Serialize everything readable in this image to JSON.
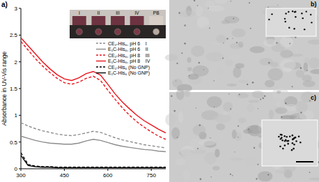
{
  "chart_data": {
    "type": "line",
    "y_label": "Absorbance in UV-Vis range",
    "x": [
      300,
      325,
      350,
      375,
      400,
      425,
      450,
      475,
      500,
      525,
      550,
      575,
      600,
      625,
      650,
      675,
      700,
      725,
      750,
      775,
      800
    ],
    "xlim": [
      300,
      800
    ],
    "xticks": [
      300,
      450,
      600,
      750
    ],
    "ylim": [
      0,
      3
    ],
    "yticks": [
      0,
      0.5,
      1,
      1.5,
      2,
      2.5,
      3
    ],
    "legend": "upper right",
    "series": [
      {
        "name": "CE₁-His₆, pH 6    I",
        "color": "#8c8c8c",
        "line_style": "dashed",
        "values": [
          0.86,
          0.8,
          0.75,
          0.71,
          0.68,
          0.65,
          0.63,
          0.62,
          0.64,
          0.67,
          0.7,
          0.68,
          0.63,
          0.58,
          0.54,
          0.51,
          0.48,
          0.45,
          0.43,
          0.41,
          0.39
        ]
      },
      {
        "name": "E₁C-His₆, pH 6    II",
        "color": "#8c8c8c",
        "line_style": "solid",
        "values": [
          0.61,
          0.57,
          0.53,
          0.5,
          0.48,
          0.47,
          0.46,
          0.46,
          0.48,
          0.52,
          0.55,
          0.53,
          0.49,
          0.45,
          0.42,
          0.4,
          0.38,
          0.36,
          0.35,
          0.33,
          0.32
        ]
      },
      {
        "name": "CE₁-His₆, pH 8    III",
        "color": "#e8141b",
        "line_style": "dashed",
        "values": [
          2.38,
          2.22,
          2.06,
          1.92,
          1.8,
          1.69,
          1.61,
          1.58,
          1.62,
          1.69,
          1.73,
          1.65,
          1.47,
          1.3,
          1.14,
          1.0,
          0.88,
          0.78,
          0.69,
          0.61,
          0.55
        ]
      },
      {
        "name": "E₁C-His₆, pH 8    IV",
        "color": "#e8141b",
        "line_style": "solid",
        "values": [
          2.45,
          2.3,
          2.15,
          2.0,
          1.87,
          1.76,
          1.68,
          1.65,
          1.7,
          1.78,
          1.82,
          1.75,
          1.58,
          1.4,
          1.25,
          1.12,
          1.0,
          0.9,
          0.82,
          0.74,
          0.67
        ]
      },
      {
        "name": "CE₁-His₆ (No GNP)",
        "color": "#000000",
        "line_style": "dashed",
        "values": [
          0.3,
          0.08,
          0.05,
          0.04,
          0.04,
          0.03,
          0.03,
          0.03,
          0.03,
          0.03,
          0.03,
          0.03,
          0.03,
          0.03,
          0.03,
          0.03,
          0.03,
          0.03,
          0.03,
          0.03,
          0.03
        ]
      },
      {
        "name": "E₁C-His₆ (No GNP)",
        "color": "#000000",
        "line_style": "solid",
        "values": [
          0.25,
          0.06,
          0.04,
          0.03,
          0.03,
          0.02,
          0.02,
          0.02,
          0.02,
          0.02,
          0.02,
          0.02,
          0.02,
          0.02,
          0.02,
          0.02,
          0.02,
          0.02,
          0.02,
          0.02,
          0.02
        ]
      }
    ]
  },
  "figure": {
    "panel_labels": [
      "a)",
      "b)",
      "c)"
    ],
    "inset_labels": [
      "I",
      "II",
      "III",
      "IV",
      "PB"
    ]
  }
}
